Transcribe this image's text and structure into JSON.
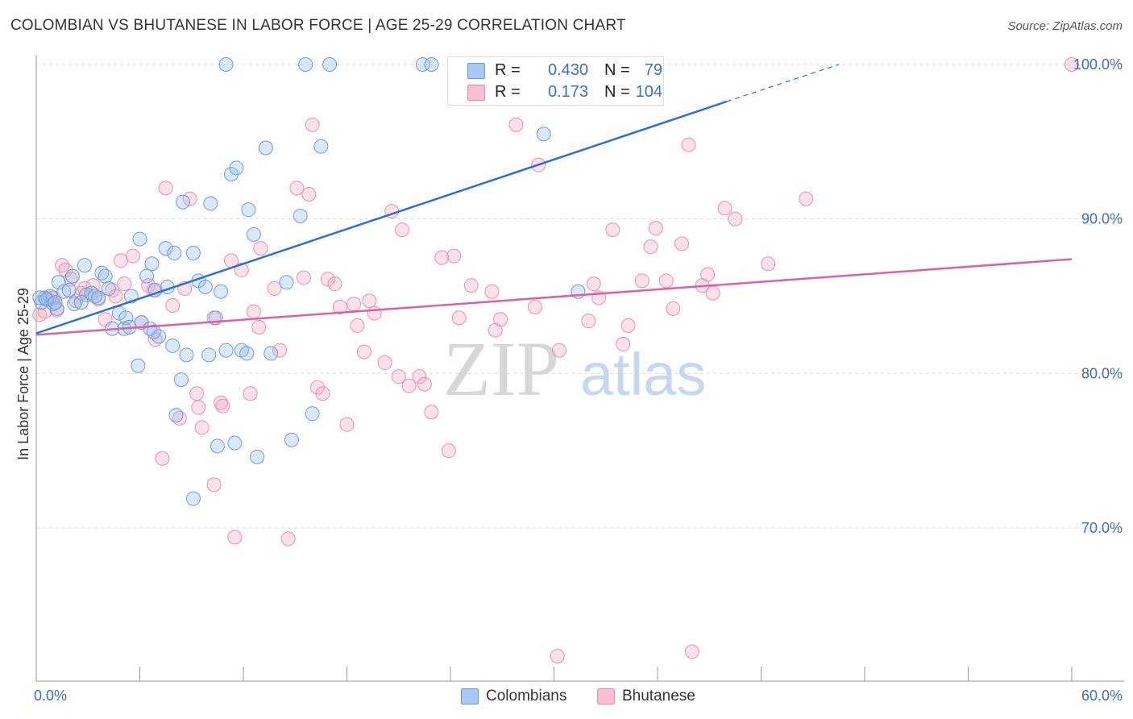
{
  "title": "COLOMBIAN VS BHUTANESE IN LABOR FORCE | AGE 25-29 CORRELATION CHART",
  "source": "Source: ZipAtlas.com",
  "watermark": {
    "zip": "ZIP",
    "atlas": "atlas"
  },
  "legend": {
    "rows": [
      {
        "r_label": "R =",
        "r_value": "0.430",
        "n_label": "N =",
        "n_value": "79",
        "color": "#a9c8f0",
        "border": "#6b9ad8"
      },
      {
        "r_label": "R =",
        "r_value": "0.173",
        "n_label": "N =",
        "n_value": "104",
        "color": "#f7bfd0",
        "border": "#e58aa8"
      }
    ]
  },
  "bottom_legend": [
    {
      "label": "Colombians",
      "color": "#a9c8f0",
      "border": "#6b9ad8"
    },
    {
      "label": "Bhutanese",
      "color": "#f7bfd0",
      "border": "#e58aa8"
    }
  ],
  "chart_data": {
    "type": "scatter",
    "title": "COLOMBIAN VS BHUTANESE IN LABOR FORCE | AGE 25-29 CORRELATION CHART",
    "xlabel": "",
    "ylabel": "In Labor Force | Age 25-29",
    "xlim": [
      0,
      60
    ],
    "ylim": [
      60,
      101
    ],
    "x_tick_labels": [
      "0.0%",
      "60.0%"
    ],
    "y_ticks": [
      70,
      80,
      90,
      100
    ],
    "y_tick_labels": [
      "70.0%",
      "80.0%",
      "90.0%",
      "100.0%"
    ],
    "grid": "horizontal dashed",
    "colors": {
      "Colombians": "#5b8fd8",
      "Bhutanese": "#e87fa3",
      "blue_line": "#2e6fd4",
      "pink_line": "#e0609a"
    },
    "series": [
      {
        "name": "Colombians",
        "trend": {
          "x0": 0,
          "y0": 82.6,
          "x1": 40,
          "y1": 97.6,
          "dashed_to_x": 46.5,
          "dashed_to_y": 100
        },
        "points": [
          [
            0.3,
            84.6
          ],
          [
            0.5,
            84.9
          ],
          [
            0.8,
            85.0
          ],
          [
            1.0,
            84.5
          ],
          [
            1.2,
            84.2
          ],
          [
            1.3,
            85.9
          ],
          [
            1.6,
            85.3
          ],
          [
            1.9,
            85.4
          ],
          [
            2.1,
            86.3
          ],
          [
            2.2,
            84.5
          ],
          [
            2.8,
            87.0
          ],
          [
            2.9,
            85.1
          ],
          [
            3.2,
            85.2
          ],
          [
            3.6,
            84.9
          ],
          [
            3.8,
            86.5
          ],
          [
            4.0,
            86.3
          ],
          [
            4.4,
            82.9
          ],
          [
            4.8,
            83.9
          ],
          [
            5.1,
            82.9
          ],
          [
            5.2,
            83.6
          ],
          [
            5.5,
            85.0
          ],
          [
            5.4,
            83.0
          ],
          [
            6.1,
            83.3
          ],
          [
            5.9,
            80.5
          ],
          [
            6.0,
            88.7
          ],
          [
            6.4,
            86.3
          ],
          [
            6.6,
            82.9
          ],
          [
            6.7,
            87.1
          ],
          [
            6.9,
            85.4
          ],
          [
            7.1,
            82.4
          ],
          [
            7.5,
            88.1
          ],
          [
            7.6,
            85.6
          ],
          [
            7.9,
            81.8
          ],
          [
            8.0,
            87.8
          ],
          [
            8.1,
            77.3
          ],
          [
            8.4,
            79.6
          ],
          [
            8.5,
            91.1
          ],
          [
            8.7,
            81.2
          ],
          [
            9.1,
            87.8
          ],
          [
            9.1,
            71.9
          ],
          [
            9.4,
            86.0
          ],
          [
            9.8,
            85.6
          ],
          [
            10.0,
            81.2
          ],
          [
            10.1,
            91.0
          ],
          [
            10.4,
            83.6
          ],
          [
            10.5,
            75.3
          ],
          [
            10.7,
            85.3
          ],
          [
            11.0,
            81.5
          ],
          [
            11.3,
            92.9
          ],
          [
            11.5,
            75.5
          ],
          [
            11.6,
            93.3
          ],
          [
            11.9,
            81.5
          ],
          [
            12.2,
            81.3
          ],
          [
            12.3,
            90.6
          ],
          [
            12.6,
            89.0
          ],
          [
            12.8,
            74.6
          ],
          [
            13.3,
            94.6
          ],
          [
            13.6,
            81.3
          ],
          [
            14.5,
            85.9
          ],
          [
            14.8,
            75.7
          ],
          [
            15.3,
            90.2
          ],
          [
            16.0,
            77.4
          ],
          [
            16.5,
            94.7
          ],
          [
            11.0,
            100.0
          ],
          [
            15.6,
            100.0
          ],
          [
            17.0,
            100.0
          ],
          [
            22.4,
            100.0
          ],
          [
            22.9,
            100.0
          ],
          [
            24.6,
            97.8
          ],
          [
            29.4,
            95.5
          ],
          [
            31.3,
            100.0
          ],
          [
            31.4,
            85.3
          ],
          [
            0.2,
            84.9
          ],
          [
            0.6,
            84.8
          ],
          [
            1.1,
            84.6
          ],
          [
            4.2,
            85.5
          ],
          [
            3.4,
            85.0
          ],
          [
            6.8,
            82.7
          ],
          [
            2.6,
            84.6
          ]
        ]
      },
      {
        "name": "Bhutanese",
        "trend": {
          "x0": 0,
          "y0": 82.5,
          "x1": 60,
          "y1": 87.4
        },
        "points": [
          [
            0.2,
            83.8
          ],
          [
            0.5,
            84.0
          ],
          [
            0.7,
            84.8
          ],
          [
            1.0,
            84.9
          ],
          [
            1.2,
            84.1
          ],
          [
            1.5,
            87.0
          ],
          [
            1.7,
            86.7
          ],
          [
            2.0,
            86.1
          ],
          [
            2.3,
            84.7
          ],
          [
            2.6,
            85.2
          ],
          [
            2.8,
            85.5
          ],
          [
            3.3,
            85.7
          ],
          [
            3.6,
            84.8
          ],
          [
            4.0,
            83.5
          ],
          [
            4.4,
            85.4
          ],
          [
            4.6,
            85.0
          ],
          [
            4.9,
            87.3
          ],
          [
            5.1,
            85.8
          ],
          [
            5.6,
            87.6
          ],
          [
            6.1,
            83.3
          ],
          [
            6.5,
            85.7
          ],
          [
            6.8,
            85.4
          ],
          [
            6.9,
            82.2
          ],
          [
            7.5,
            92.0
          ],
          [
            7.3,
            74.5
          ],
          [
            7.9,
            84.4
          ],
          [
            8.3,
            77.1
          ],
          [
            8.6,
            85.5
          ],
          [
            8.9,
            91.3
          ],
          [
            9.3,
            78.7
          ],
          [
            9.4,
            77.8
          ],
          [
            9.6,
            76.5
          ],
          [
            10.3,
            83.6
          ],
          [
            10.3,
            72.8
          ],
          [
            10.7,
            78.1
          ],
          [
            10.8,
            77.9
          ],
          [
            11.3,
            87.3
          ],
          [
            11.5,
            69.4
          ],
          [
            11.9,
            86.7
          ],
          [
            12.4,
            78.7
          ],
          [
            12.6,
            84.0
          ],
          [
            12.9,
            83.0
          ],
          [
            13.0,
            88.1
          ],
          [
            13.8,
            85.5
          ],
          [
            14.1,
            81.5
          ],
          [
            14.6,
            69.3
          ],
          [
            15.1,
            92.0
          ],
          [
            15.5,
            86.2
          ],
          [
            15.8,
            91.6
          ],
          [
            16.0,
            96.1
          ],
          [
            16.3,
            79.1
          ],
          [
            16.6,
            78.7
          ],
          [
            16.9,
            86.1
          ],
          [
            17.3,
            85.8
          ],
          [
            17.6,
            84.3
          ],
          [
            18.0,
            76.7
          ],
          [
            18.4,
            84.5
          ],
          [
            18.6,
            83.1
          ],
          [
            19.0,
            81.4
          ],
          [
            19.3,
            84.7
          ],
          [
            19.6,
            83.9
          ],
          [
            20.2,
            80.7
          ],
          [
            20.6,
            90.5
          ],
          [
            21.0,
            79.8
          ],
          [
            21.2,
            89.3
          ],
          [
            21.6,
            79.2
          ],
          [
            22.2,
            79.8
          ],
          [
            22.5,
            79.3
          ],
          [
            22.9,
            77.5
          ],
          [
            23.5,
            87.5
          ],
          [
            23.9,
            75.0
          ],
          [
            24.2,
            87.6
          ],
          [
            24.5,
            83.6
          ],
          [
            25.2,
            85.7
          ],
          [
            26.4,
            85.3
          ],
          [
            26.6,
            82.8
          ],
          [
            26.9,
            83.5
          ],
          [
            27.8,
            96.1
          ],
          [
            28.9,
            84.3
          ],
          [
            29.1,
            93.5
          ],
          [
            30.3,
            81.5
          ],
          [
            30.2,
            61.7
          ],
          [
            32.0,
            83.4
          ],
          [
            32.3,
            85.8
          ],
          [
            32.6,
            84.9
          ],
          [
            33.4,
            89.3
          ],
          [
            34.3,
            83.1
          ],
          [
            34.0,
            81.9
          ],
          [
            35.1,
            86.0
          ],
          [
            35.6,
            88.2
          ],
          [
            35.9,
            89.4
          ],
          [
            36.5,
            86.0
          ],
          [
            36.9,
            84.2
          ],
          [
            37.4,
            88.4
          ],
          [
            38.0,
            62.0
          ],
          [
            38.6,
            85.7
          ],
          [
            38.9,
            86.4
          ],
          [
            39.2,
            85.2
          ],
          [
            37.8,
            94.8
          ],
          [
            39.9,
            90.7
          ],
          [
            40.5,
            90.0
          ],
          [
            42.4,
            87.1
          ],
          [
            44.6,
            91.3
          ],
          [
            60.0,
            100.0
          ]
        ]
      }
    ]
  }
}
